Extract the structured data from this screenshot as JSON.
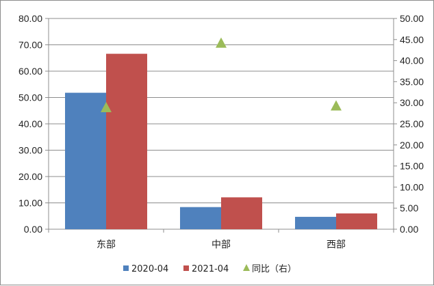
{
  "chart_data": {
    "type": "bar",
    "categories": [
      "东部",
      "中部",
      "西部"
    ],
    "series": [
      {
        "name": "2020-04",
        "axis": "left",
        "kind": "bar",
        "color": "#4f81bd",
        "values": [
          51.8,
          8.4,
          4.7
        ]
      },
      {
        "name": "2021-04",
        "axis": "left",
        "kind": "bar",
        "color": "#c0504d",
        "values": [
          66.6,
          12.1,
          6.0
        ]
      },
      {
        "name": "同比（右）",
        "axis": "right",
        "kind": "marker",
        "marker": "triangle",
        "color": "#9bbb59",
        "values": [
          28.9,
          44.2,
          29.3
        ]
      }
    ],
    "y_left": {
      "min": 0,
      "max": 80,
      "step": 10,
      "ticks": [
        "0.00",
        "10.00",
        "20.00",
        "30.00",
        "40.00",
        "50.00",
        "60.00",
        "70.00",
        "80.00"
      ]
    },
    "y_right": {
      "min": 0,
      "max": 50,
      "step": 5,
      "ticks": [
        "0.00",
        "5.00",
        "10.00",
        "15.00",
        "20.00",
        "25.00",
        "30.00",
        "35.00",
        "40.00",
        "45.00",
        "50.00"
      ]
    },
    "title": "",
    "xlabel": "",
    "ylabel": "",
    "grid": true,
    "legend_position": "bottom"
  }
}
